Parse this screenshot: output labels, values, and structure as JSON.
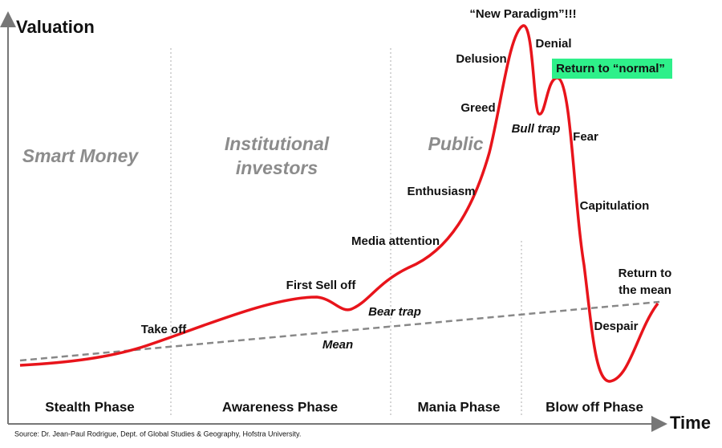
{
  "axes": {
    "y_label": "Valuation",
    "x_label": "Time"
  },
  "groups": {
    "smart_money": "Smart Money",
    "institutional": [
      "Institutional",
      "investors"
    ],
    "public": "Public"
  },
  "phases": [
    "Stealth Phase",
    "Awareness Phase",
    "Mania Phase",
    "Blow off Phase"
  ],
  "annotations": {
    "take_off": "Take off",
    "first_sell_off": "First Sell off",
    "bear_trap": "Bear trap",
    "media_attention": "Media attention",
    "enthusiasm": "Enthusiasm",
    "greed": "Greed",
    "delusion": "Delusion",
    "new_paradigm": "“New Paradigm”!!!",
    "denial": "Denial",
    "return_to_normal": "Return to “normal”",
    "bull_trap": "Bull trap",
    "fear": "Fear",
    "capitulation": "Capitulation",
    "return_to_mean": [
      "Return to",
      "the mean"
    ],
    "despair": "Despair",
    "mean": "Mean"
  },
  "source": "Source: Dr. Jean-Paul Rodrigue, Dept. of Global Studies & Geography, Hofstra University."
}
